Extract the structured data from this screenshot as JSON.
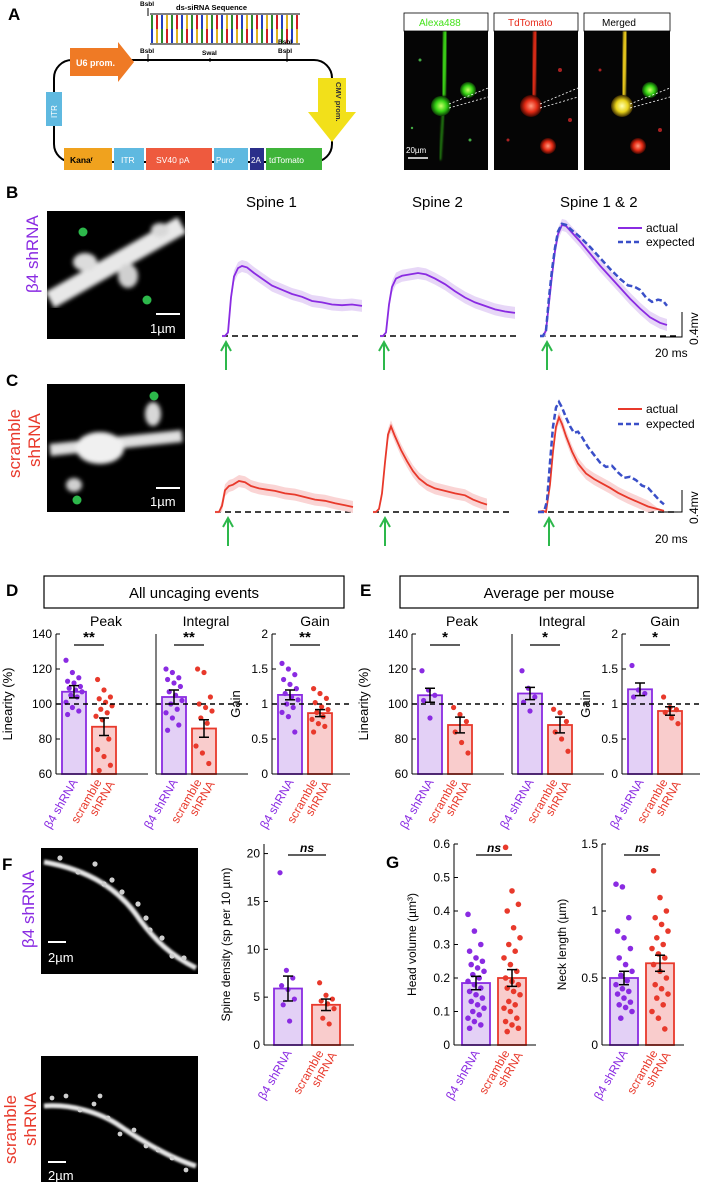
{
  "colors": {
    "purple": "#8a2be2",
    "purple_fill": "#e3d0f6",
    "red": "#e8392b",
    "red_fill": "#f9cccc",
    "blue_dash": "#3a4fc8",
    "green": "#2db84b",
    "alexa": "#44e21a",
    "tdtomato_label": "#e82a1a"
  },
  "panel_letters": {
    "a": "A",
    "b": "B",
    "c": "C",
    "d": "D",
    "e": "E",
    "f": "F",
    "g": "G"
  },
  "plasmid": {
    "sirna_title": "ds-siRNA Sequence",
    "bsbi": "BsbI",
    "swai": "SwaI",
    "u6": "U6 prom.",
    "itr": "ITR",
    "cmv": "CMV prom.",
    "kana": "Kanaʳ",
    "sv40": "SV40 pA",
    "puro": "Puroʳ",
    "t2a": "2A",
    "tdtomato": "tdTomato"
  },
  "micrographs": {
    "alexa": "Alexa488",
    "tdtomato": "TdTomato",
    "merged": "Merged",
    "scale_20um": "20µm",
    "scale_1um": "1µm",
    "scale_2um": "2µm"
  },
  "traces": {
    "spine1": "Spine 1",
    "spine2": "Spine 2",
    "spine12": "Spine 1 & 2",
    "actual": "actual",
    "expected": "expected",
    "scale_mv": "0.4mv",
    "scale_ms": "20 ms",
    "label_b4": "β4 shRNA",
    "label_scr1": "scramble",
    "label_scr2": "shRNA",
    "b4_s1": [
      [
        0,
        0
      ],
      [
        3,
        0
      ],
      [
        6,
        0.05
      ],
      [
        9,
        0.55
      ],
      [
        12,
        0.85
      ],
      [
        16,
        0.97
      ],
      [
        20,
        1.0
      ],
      [
        25,
        0.98
      ],
      [
        32,
        0.9
      ],
      [
        40,
        0.82
      ],
      [
        50,
        0.72
      ],
      [
        60,
        0.66
      ],
      [
        70,
        0.6
      ],
      [
        80,
        0.56
      ],
      [
        90,
        0.5
      ],
      [
        100,
        0.48
      ],
      [
        110,
        0.45
      ],
      [
        120,
        0.44
      ],
      [
        130,
        0.45
      ],
      [
        140,
        0.43
      ]
    ],
    "b4_s2": [
      [
        0,
        0
      ],
      [
        3,
        0
      ],
      [
        6,
        0.05
      ],
      [
        9,
        0.45
      ],
      [
        12,
        0.7
      ],
      [
        16,
        0.82
      ],
      [
        22,
        0.86
      ],
      [
        30,
        0.88
      ],
      [
        38,
        0.9
      ],
      [
        46,
        0.88
      ],
      [
        55,
        0.82
      ],
      [
        65,
        0.74
      ],
      [
        75,
        0.64
      ],
      [
        85,
        0.55
      ],
      [
        95,
        0.48
      ],
      [
        105,
        0.43
      ],
      [
        115,
        0.38
      ],
      [
        125,
        0.35
      ],
      [
        135,
        0.33
      ]
    ],
    "b4_s12_actual": [
      [
        0,
        0
      ],
      [
        3,
        0
      ],
      [
        6,
        0.1
      ],
      [
        9,
        0.6
      ],
      [
        12,
        1.1
      ],
      [
        15,
        1.55
      ],
      [
        18,
        1.85
      ],
      [
        22,
        2.02
      ],
      [
        26,
        2.0
      ],
      [
        32,
        1.88
      ],
      [
        40,
        1.72
      ],
      [
        50,
        1.5
      ],
      [
        60,
        1.28
      ],
      [
        70,
        1.08
      ],
      [
        80,
        0.88
      ],
      [
        90,
        0.68
      ],
      [
        100,
        0.5
      ],
      [
        110,
        0.34
      ],
      [
        120,
        0.24
      ],
      [
        127,
        0.2
      ]
    ],
    "b4_s12_expected": [
      [
        0,
        0
      ],
      [
        3,
        0
      ],
      [
        6,
        0.1
      ],
      [
        9,
        0.7
      ],
      [
        12,
        1.2
      ],
      [
        15,
        1.6
      ],
      [
        18,
        1.9
      ],
      [
        22,
        2.04
      ],
      [
        26,
        2.02
      ],
      [
        32,
        1.92
      ],
      [
        40,
        1.8
      ],
      [
        50,
        1.62
      ],
      [
        60,
        1.42
      ],
      [
        70,
        1.22
      ],
      [
        80,
        1.04
      ],
      [
        88,
        0.92
      ],
      [
        94,
        0.9
      ],
      [
        100,
        0.84
      ],
      [
        106,
        0.7
      ],
      [
        112,
        0.62
      ],
      [
        118,
        0.66
      ],
      [
        123,
        0.64
      ],
      [
        127,
        0.55
      ]
    ],
    "scr_s1": [
      [
        0,
        0
      ],
      [
        4,
        0
      ],
      [
        7,
        0.1
      ],
      [
        10,
        0.35
      ],
      [
        14,
        0.42
      ],
      [
        18,
        0.44
      ],
      [
        24,
        0.5
      ],
      [
        30,
        0.48
      ],
      [
        36,
        0.42
      ],
      [
        44,
        0.38
      ],
      [
        52,
        0.36
      ],
      [
        60,
        0.34
      ],
      [
        70,
        0.3
      ],
      [
        80,
        0.28
      ],
      [
        90,
        0.24
      ],
      [
        100,
        0.2
      ],
      [
        110,
        0.18
      ],
      [
        120,
        0.14
      ],
      [
        130,
        0.11
      ],
      [
        138,
        0.08
      ]
    ],
    "scr_s2": [
      [
        0,
        0
      ],
      [
        3,
        0
      ],
      [
        6,
        0.05
      ],
      [
        9,
        0.3
      ],
      [
        12,
        0.8
      ],
      [
        15,
        1.25
      ],
      [
        18,
        1.38
      ],
      [
        22,
        1.22
      ],
      [
        28,
        1.0
      ],
      [
        34,
        0.82
      ],
      [
        40,
        0.66
      ],
      [
        46,
        0.54
      ],
      [
        54,
        0.44
      ],
      [
        62,
        0.38
      ],
      [
        72,
        0.34
      ],
      [
        82,
        0.3
      ],
      [
        92,
        0.27
      ],
      [
        100,
        0.2
      ],
      [
        108,
        0.15
      ],
      [
        114,
        0.12
      ]
    ],
    "scr_s12_actual": [
      [
        0,
        0
      ],
      [
        5,
        0.02
      ],
      [
        8,
        0.0
      ],
      [
        12,
        0.5
      ],
      [
        15,
        1.1
      ],
      [
        18,
        1.55
      ],
      [
        21,
        1.72
      ],
      [
        24,
        1.6
      ],
      [
        28,
        1.38
      ],
      [
        34,
        1.1
      ],
      [
        40,
        0.88
      ],
      [
        48,
        0.7
      ],
      [
        56,
        0.6
      ],
      [
        64,
        0.52
      ],
      [
        72,
        0.44
      ],
      [
        80,
        0.35
      ],
      [
        90,
        0.26
      ],
      [
        100,
        0.18
      ],
      [
        110,
        0.1
      ],
      [
        120,
        0.05
      ],
      [
        126,
        0.02
      ]
    ],
    "scr_s12_expected": [
      [
        0,
        0
      ],
      [
        6,
        0
      ],
      [
        9,
        0.2
      ],
      [
        12,
        0.9
      ],
      [
        15,
        1.55
      ],
      [
        18,
        1.9
      ],
      [
        21,
        2.0
      ],
      [
        24,
        1.9
      ],
      [
        28,
        1.72
      ],
      [
        32,
        1.56
      ],
      [
        36,
        1.44
      ],
      [
        40,
        1.46
      ],
      [
        44,
        1.36
      ],
      [
        50,
        1.18
      ],
      [
        56,
        1.04
      ],
      [
        62,
        0.9
      ],
      [
        68,
        0.82
      ],
      [
        74,
        0.84
      ],
      [
        80,
        0.72
      ],
      [
        86,
        0.62
      ],
      [
        92,
        0.64
      ],
      [
        98,
        0.58
      ],
      [
        104,
        0.48
      ],
      [
        110,
        0.44
      ],
      [
        116,
        0.32
      ],
      [
        122,
        0.2
      ],
      [
        126,
        0.14
      ]
    ]
  },
  "bars": {
    "d_title": "All uncaging events",
    "e_title": "Average per mouse",
    "peak": "Peak",
    "integral": "Integral",
    "gain": "Gain",
    "linearity_label": "Linearity (%)",
    "gain_label": "Gain",
    "x_b4": "β4 shRNA",
    "x_scr1": "scramble",
    "x_scr2": "shRNA",
    "sig2": "**",
    "sig1": "*",
    "ns": "ns",
    "spine_density_label": "Spine density (sp per 10 µm)",
    "head_volume_label": "Head volume (µm³)",
    "neck_length_label": "Neck length (µm)",
    "lin_ticks": [
      "60",
      "80",
      "100",
      "120",
      "140"
    ],
    "gain_ticks": [
      "0",
      "0.5",
      "1",
      "1.5",
      "2"
    ],
    "dens_ticks": [
      "0",
      "5",
      "10",
      "15",
      "20"
    ],
    "head_ticks": [
      "0",
      "0.1",
      "0.2",
      "0.3",
      "0.4",
      "0.5",
      "0.6"
    ],
    "neck_ticks": [
      "0",
      "0.5",
      "1",
      "1.5"
    ]
  },
  "chart_data": [
    {
      "type": "bar",
      "panel": "D-Peak",
      "ylabel": "Linearity (%)",
      "ylim": [
        60,
        140
      ],
      "categories": [
        "β4 shRNA",
        "scramble shRNA"
      ],
      "values": [
        107,
        87
      ],
      "errors": [
        3.5,
        5
      ],
      "points": [
        [
          125,
          118,
          115,
          113,
          112,
          110,
          109,
          108,
          107,
          105,
          104,
          101,
          98,
          96,
          94
        ],
        [
          114,
          108,
          104,
          103,
          101,
          99,
          97,
          95,
          93,
          91,
          80,
          74,
          70,
          65,
          62
        ]
      ]
    },
    {
      "type": "bar",
      "panel": "D-Integral",
      "ylabel": "Linearity (%)",
      "ylim": [
        60,
        140
      ],
      "categories": [
        "β4 shRNA",
        "scramble shRNA"
      ],
      "values": [
        104,
        86
      ],
      "errors": [
        4,
        5
      ],
      "points": [
        [
          120,
          118,
          115,
          114,
          112,
          110,
          107,
          105,
          102,
          100,
          97,
          95,
          92,
          88,
          85
        ],
        [
          120,
          118,
          104,
          100,
          98,
          96,
          92,
          89,
          76,
          72,
          66
        ]
      ]
    },
    {
      "type": "bar",
      "panel": "D-Gain",
      "ylabel": "Gain",
      "ylim": [
        0,
        2
      ],
      "categories": [
        "β4 shRNA",
        "scramble shRNA"
      ],
      "values": [
        1.13,
        0.87
      ],
      "errors": [
        0.07,
        0.05
      ],
      "points": [
        [
          1.58,
          1.5,
          1.42,
          1.35,
          1.28,
          1.22,
          1.15,
          1.1,
          1.06,
          1.0,
          0.95,
          0.88,
          0.82,
          0.6
        ],
        [
          1.22,
          1.15,
          1.08,
          1.02,
          0.96,
          0.92,
          0.88,
          0.82,
          0.78,
          0.72,
          0.68,
          0.6
        ]
      ]
    },
    {
      "type": "bar",
      "panel": "E-Peak",
      "ylabel": "Linearity (%)",
      "ylim": [
        60,
        140
      ],
      "categories": [
        "β4 shRNA",
        "scramble shRNA"
      ],
      "values": [
        105,
        88
      ],
      "errors": [
        4,
        4.5
      ],
      "points": [
        [
          119,
          108,
          105,
          102,
          92
        ],
        [
          98,
          94,
          90,
          84,
          78,
          72
        ]
      ]
    },
    {
      "type": "bar",
      "panel": "E-Integral",
      "ylabel": "Linearity (%)",
      "ylim": [
        60,
        140
      ],
      "categories": [
        "β4 shRNA",
        "scramble shRNA"
      ],
      "values": [
        106,
        88
      ],
      "errors": [
        3.5,
        4.5
      ],
      "points": [
        [
          119,
          109,
          104,
          101,
          96
        ],
        [
          97,
          95,
          90,
          84,
          80,
          73
        ]
      ]
    },
    {
      "type": "bar",
      "panel": "E-Gain",
      "ylabel": "Gain",
      "ylim": [
        0,
        2
      ],
      "categories": [
        "β4 shRNA",
        "scramble shRNA"
      ],
      "values": [
        1.21,
        0.9
      ],
      "errors": [
        0.09,
        0.06
      ],
      "points": [
        [
          1.55,
          1.2,
          1.15,
          1.1
        ],
        [
          1.1,
          0.95,
          0.92,
          0.88,
          0.8,
          0.72
        ]
      ]
    },
    {
      "type": "bar",
      "panel": "F",
      "ylabel": "Spine density (sp per 10 µm)",
      "ylim": [
        0,
        21
      ],
      "categories": [
        "β4 shRNA",
        "scramble shRNA"
      ],
      "values": [
        5.9,
        4.2
      ],
      "errors": [
        1.3,
        0.6
      ],
      "points": [
        [
          18,
          7.8,
          7.0,
          6.2,
          5.8,
          4.8,
          4.2,
          2.5
        ],
        [
          6.5,
          5.2,
          4.8,
          4.6,
          4.3,
          3.8,
          2.8,
          2.2
        ]
      ]
    },
    {
      "type": "bar",
      "panel": "G-Head",
      "ylabel": "Head volume (µm³)",
      "ylim": [
        0,
        0.6
      ],
      "categories": [
        "β4 shRNA",
        "scramble shRNA"
      ],
      "values": [
        0.185,
        0.2
      ],
      "errors": [
        0.02,
        0.025
      ],
      "points": [
        [
          0.39,
          0.34,
          0.3,
          0.28,
          0.26,
          0.25,
          0.24,
          0.23,
          0.22,
          0.21,
          0.2,
          0.19,
          0.18,
          0.17,
          0.16,
          0.15,
          0.14,
          0.13,
          0.12,
          0.11,
          0.1,
          0.09,
          0.08,
          0.07,
          0.06,
          0.05
        ],
        [
          0.59,
          0.46,
          0.42,
          0.4,
          0.35,
          0.32,
          0.3,
          0.28,
          0.26,
          0.24,
          0.22,
          0.2,
          0.19,
          0.18,
          0.17,
          0.16,
          0.15,
          0.13,
          0.12,
          0.11,
          0.1,
          0.08,
          0.07,
          0.06,
          0.05,
          0.04
        ]
      ]
    },
    {
      "type": "bar",
      "panel": "G-Neck",
      "ylabel": "Neck length (µm)",
      "ylim": [
        0,
        1.5
      ],
      "categories": [
        "β4 shRNA",
        "scramble shRNA"
      ],
      "values": [
        0.5,
        0.61
      ],
      "errors": [
        0.05,
        0.06
      ],
      "points": [
        [
          1.2,
          1.18,
          0.95,
          0.85,
          0.8,
          0.72,
          0.65,
          0.6,
          0.55,
          0.52,
          0.48,
          0.45,
          0.42,
          0.4,
          0.38,
          0.35,
          0.32,
          0.3,
          0.28,
          0.25,
          0.2
        ],
        [
          1.3,
          1.1,
          1.0,
          0.95,
          0.9,
          0.85,
          0.8,
          0.75,
          0.72,
          0.68,
          0.65,
          0.6,
          0.55,
          0.5,
          0.45,
          0.42,
          0.38,
          0.35,
          0.3,
          0.25,
          0.2,
          0.12
        ]
      ]
    }
  ]
}
